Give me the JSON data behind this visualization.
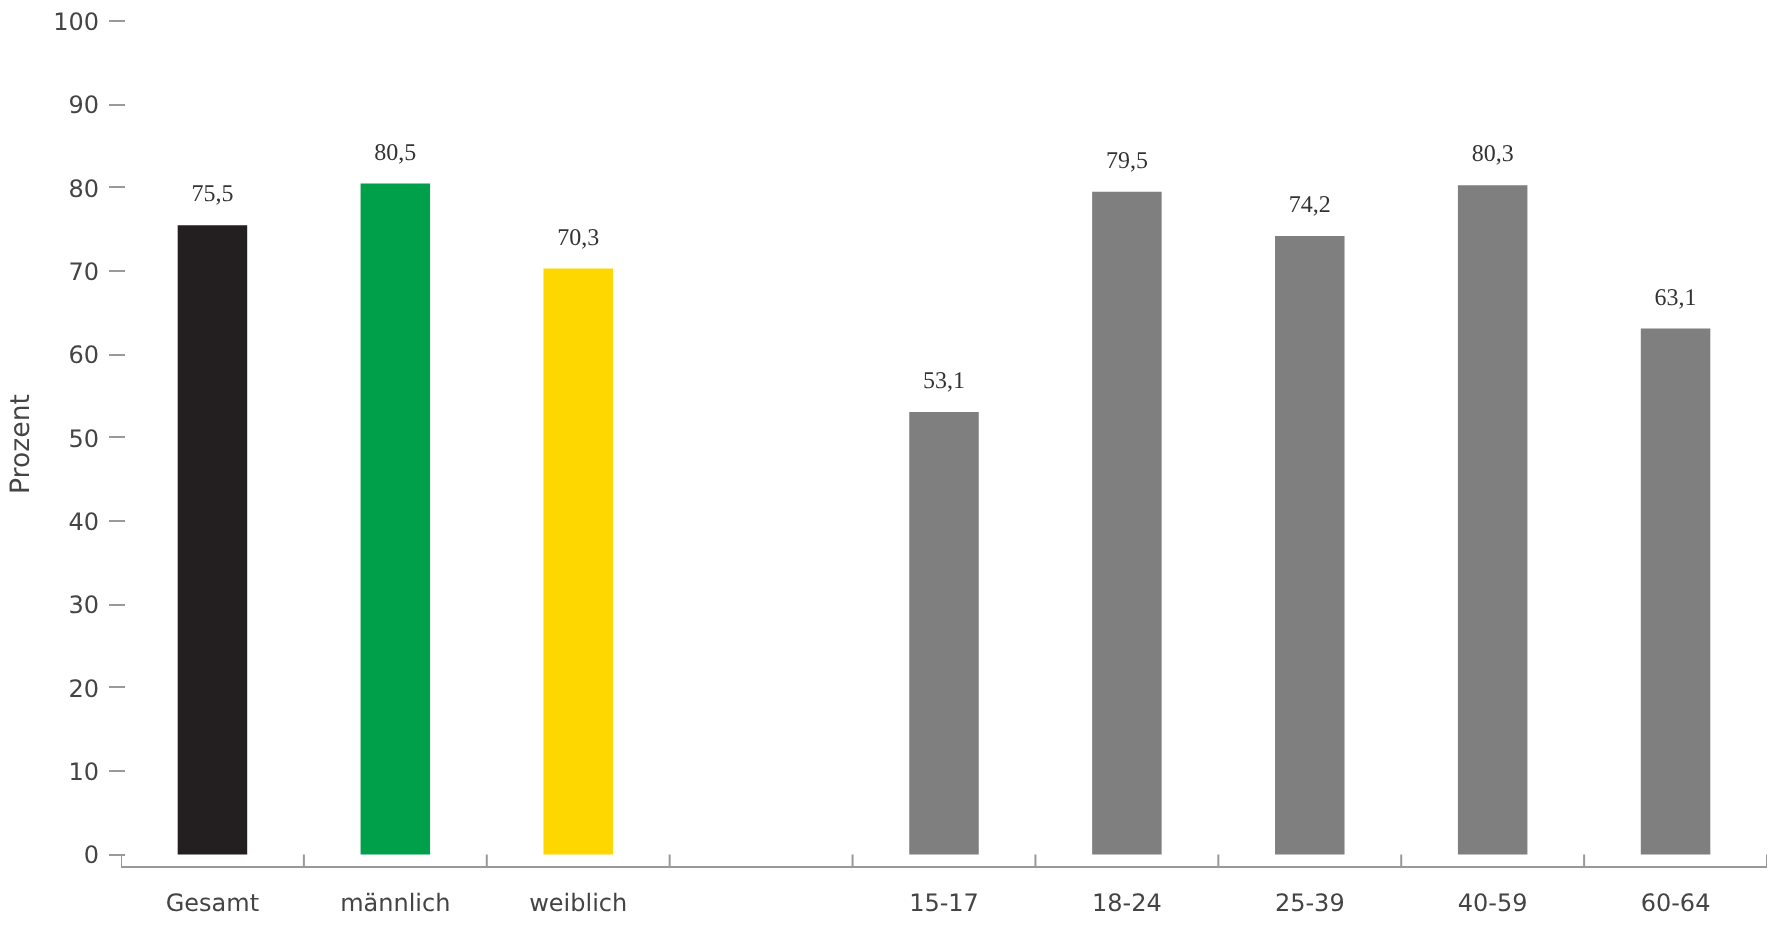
{
  "chart_data": {
    "type": "bar",
    "ylabel": "Prozent",
    "categories": [
      "Gesamt",
      "männlich",
      "weiblich",
      null,
      "15-17",
      "18-24",
      "25-39",
      "40-59",
      "60-64"
    ],
    "values": [
      75.5,
      80.5,
      70.3,
      null,
      53.1,
      79.5,
      74.2,
      80.3,
      63.1
    ],
    "value_labels": [
      "75,5",
      "80,5",
      "70,3",
      null,
      "53,1",
      "79,5",
      "74,2",
      "80,3",
      "63,1"
    ],
    "colors": [
      "#231f20",
      "#00a04b",
      "#ffd700",
      "#7f7f7f",
      "#7f7f7f",
      "#7f7f7f",
      "#7f7f7f",
      "#7f7f7f",
      "#7f7f7f"
    ],
    "ylim": [
      0,
      100
    ],
    "yticks": [
      0,
      10,
      20,
      30,
      40,
      50,
      60,
      70,
      80,
      90,
      100
    ],
    "grid": false
  }
}
